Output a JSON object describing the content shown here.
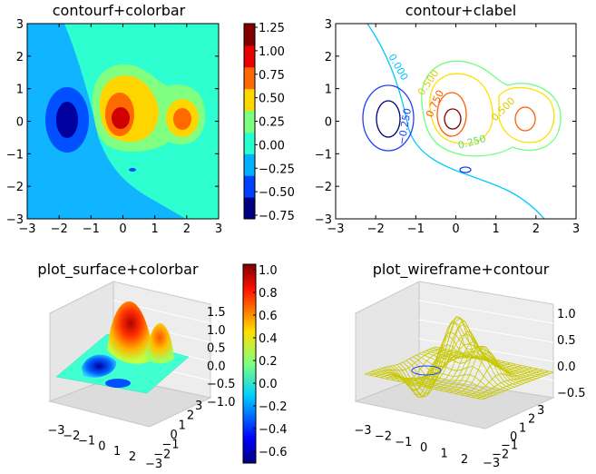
{
  "chart_data": [
    {
      "type": "heatmap",
      "title": "contourf+colorbar",
      "xlim": [
        -3,
        3
      ],
      "ylim": [
        -3,
        3
      ],
      "x_ticks": [
        "−3",
        "−2",
        "−1",
        "0",
        "1",
        "2",
        "3"
      ],
      "y_ticks": [
        "3",
        "2",
        "1",
        "0",
        "−1",
        "−2",
        "−3"
      ],
      "colorbar_ticks": [
        "1.25",
        "1.00",
        "0.75",
        "0.50",
        "0.25",
        "0.00",
        "−0.25",
        "−0.50",
        "−0.75"
      ],
      "levels": [
        -0.75,
        -0.5,
        -0.25,
        0.0,
        0.25,
        0.5,
        0.75,
        1.0,
        1.25
      ],
      "level_colors": [
        "#00007f",
        "#0040ff",
        "#00b0ff",
        "#28ffcf",
        "#7fff7f",
        "#ffd700",
        "#ff6800",
        "#e80000",
        "#7f0000"
      ]
    },
    {
      "type": "line",
      "title": "contour+clabel",
      "xlim": [
        -3,
        3
      ],
      "ylim": [
        -3,
        3
      ],
      "x_ticks": [
        "−3",
        "−2",
        "−1",
        "0",
        "1",
        "2",
        "3"
      ],
      "y_ticks": [
        "3",
        "2",
        "1",
        "0",
        "−1",
        "−2",
        "−3"
      ],
      "contour_labels": [
        "0.000",
        "0.500",
        "0.750",
        "−0.250",
        "0.500",
        "0.250"
      ]
    },
    {
      "type": "area",
      "title": "plot_surface+colorbar",
      "z_ticks": [
        "1.5",
        "1.0",
        "0.5",
        "0.0",
        "−0.5",
        "−1.0"
      ],
      "x_ticks": [
        "−3",
        "−2",
        "−1",
        "0",
        "1",
        "2"
      ],
      "y_ticks": [
        "3",
        "2",
        "1",
        "0",
        "−1",
        "−2",
        "−3"
      ],
      "colorbar_ticks": [
        "1.0",
        "0.8",
        "0.6",
        "0.4",
        "0.2",
        "0.0",
        "−0.2",
        "−0.4",
        "−0.6"
      ]
    },
    {
      "type": "line",
      "title": "plot_wireframe+contour",
      "z_ticks": [
        "1.0",
        "0.5",
        "0.0",
        "−0.5"
      ],
      "x_ticks": [
        "−3",
        "−2",
        "−1",
        "0",
        "1",
        "2"
      ],
      "y_ticks": [
        "3",
        "2",
        "1",
        "0",
        "−1",
        "−2",
        "−3"
      ],
      "wire_color": "#c8c800"
    }
  ]
}
